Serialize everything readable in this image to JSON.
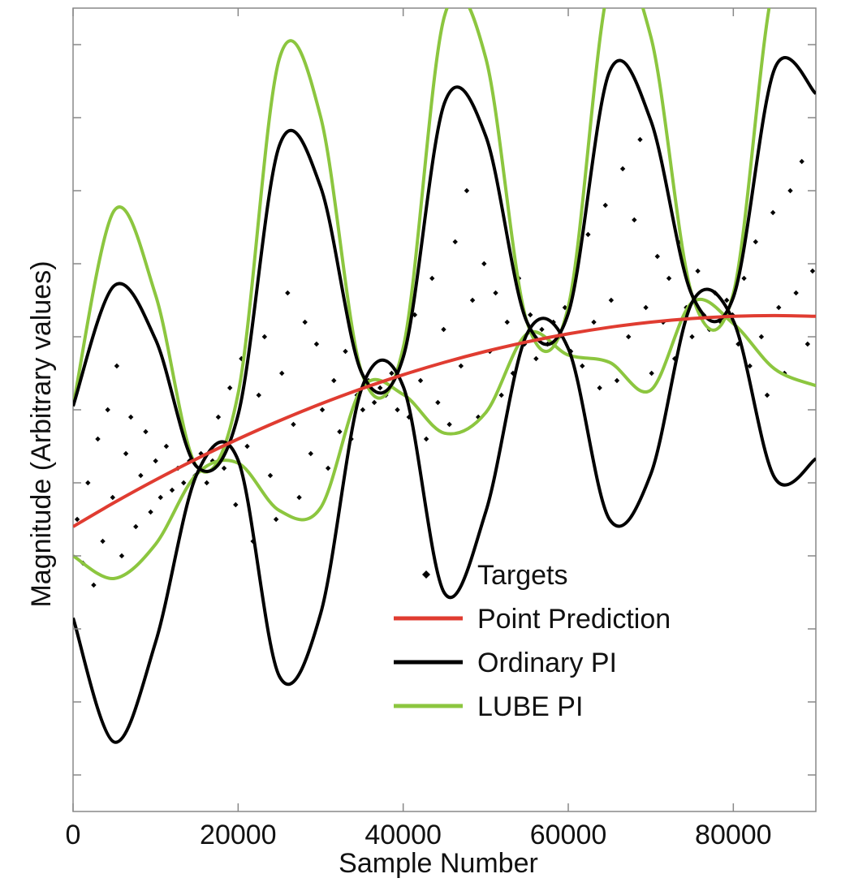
{
  "chart_data": {
    "type": "line",
    "xlabel": "Sample Number",
    "ylabel": "Magnitude  (Arbitrary values)",
    "xlim": [
      0,
      90000
    ],
    "ylim": [
      -4.5,
      6.5
    ],
    "x_ticks": [
      0,
      20000,
      40000,
      60000,
      80000
    ],
    "x_tick_labels": [
      "0",
      "20000",
      "40000",
      "60000",
      "80000"
    ],
    "y_ticks": [
      -4,
      -3,
      -2,
      -1,
      0,
      1,
      2,
      3,
      4,
      5,
      6
    ],
    "y_tick_labels_shown": false,
    "grid": false,
    "legend_position": "lower-center",
    "x": [
      0,
      5000,
      10000,
      15000,
      20000,
      25000,
      30000,
      35000,
      40000,
      45000,
      50000,
      55000,
      60000,
      65000,
      70000,
      75000,
      80000,
      85000,
      90000
    ],
    "series": [
      {
        "name": "Targets",
        "kind": "scatter",
        "color": "#000000",
        "points": [
          [
            500,
            -0.5
          ],
          [
            1200,
            -1.1
          ],
          [
            1800,
            0.0
          ],
          [
            2500,
            -1.4
          ],
          [
            3000,
            0.6
          ],
          [
            3600,
            -0.8
          ],
          [
            4200,
            1.0
          ],
          [
            4800,
            -0.2
          ],
          [
            5300,
            1.6
          ],
          [
            5900,
            -1.0
          ],
          [
            6400,
            0.4
          ],
          [
            7000,
            0.9
          ],
          [
            7600,
            -0.6
          ],
          [
            8200,
            0.1
          ],
          [
            8800,
            0.7
          ],
          [
            9400,
            -0.4
          ],
          [
            10000,
            0.3
          ],
          [
            10600,
            -0.2
          ],
          [
            11300,
            0.5
          ],
          [
            12000,
            -0.1
          ],
          [
            12700,
            0.2
          ],
          [
            13400,
            0.0
          ],
          [
            14100,
            0.3
          ],
          [
            14800,
            0.1
          ],
          [
            15500,
            0.4
          ],
          [
            16200,
            0.0
          ],
          [
            16900,
            0.3
          ],
          [
            17600,
            0.9
          ],
          [
            18300,
            0.2
          ],
          [
            19000,
            1.3
          ],
          [
            19700,
            -0.3
          ],
          [
            20400,
            1.7
          ],
          [
            21100,
            0.5
          ],
          [
            21800,
            -0.8
          ],
          [
            22500,
            1.2
          ],
          [
            23200,
            2.0
          ],
          [
            23900,
            0.1
          ],
          [
            24600,
            -0.5
          ],
          [
            25300,
            1.5
          ],
          [
            26000,
            2.6
          ],
          [
            26700,
            0.8
          ],
          [
            27400,
            -0.2
          ],
          [
            28100,
            2.2
          ],
          [
            28800,
            0.4
          ],
          [
            29500,
            1.9
          ],
          [
            30200,
            1.0
          ],
          [
            30900,
            0.2
          ],
          [
            31600,
            1.4
          ],
          [
            32300,
            0.7
          ],
          [
            33000,
            1.8
          ],
          [
            33700,
            0.6
          ],
          [
            34400,
            1.2
          ],
          [
            35100,
            1.0
          ],
          [
            35800,
            1.4
          ],
          [
            36500,
            1.1
          ],
          [
            37200,
            1.3
          ],
          [
            37900,
            1.2
          ],
          [
            38600,
            1.5
          ],
          [
            39300,
            1.0
          ],
          [
            40000,
            1.8
          ],
          [
            40700,
            0.9
          ],
          [
            41400,
            2.3
          ],
          [
            42100,
            1.4
          ],
          [
            42800,
            0.6
          ],
          [
            43500,
            2.8
          ],
          [
            44200,
            1.1
          ],
          [
            44900,
            2.1
          ],
          [
            45600,
            0.8
          ],
          [
            46300,
            3.3
          ],
          [
            47000,
            1.6
          ],
          [
            47700,
            4.0
          ],
          [
            48400,
            2.5
          ],
          [
            49100,
            0.9
          ],
          [
            49800,
            3.0
          ],
          [
            50500,
            1.8
          ],
          [
            51200,
            2.6
          ],
          [
            51900,
            1.2
          ],
          [
            52600,
            2.2
          ],
          [
            53300,
            1.5
          ],
          [
            54000,
            2.8
          ],
          [
            54700,
            1.9
          ],
          [
            55400,
            2.3
          ],
          [
            56100,
            1.7
          ],
          [
            56800,
            2.1
          ],
          [
            57500,
            1.9
          ],
          [
            58200,
            2.2
          ],
          [
            58900,
            2.0
          ],
          [
            59600,
            2.4
          ],
          [
            60300,
            1.8
          ],
          [
            61000,
            2.9
          ],
          [
            61700,
            1.6
          ],
          [
            62400,
            3.4
          ],
          [
            63100,
            2.2
          ],
          [
            63800,
            1.3
          ],
          [
            64500,
            3.8
          ],
          [
            65200,
            2.5
          ],
          [
            65900,
            1.4
          ],
          [
            66600,
            4.3
          ],
          [
            67300,
            2.0
          ],
          [
            68000,
            3.6
          ],
          [
            68700,
            4.7
          ],
          [
            69400,
            2.4
          ],
          [
            70100,
            1.5
          ],
          [
            70800,
            3.1
          ],
          [
            71500,
            2.2
          ],
          [
            72200,
            2.8
          ],
          [
            72900,
            1.7
          ],
          [
            73600,
            3.3
          ],
          [
            74300,
            2.4
          ],
          [
            75000,
            2.0
          ],
          [
            75700,
            2.9
          ],
          [
            76400,
            2.3
          ],
          [
            77100,
            2.1
          ],
          [
            77800,
            2.6
          ],
          [
            78500,
            2.2
          ],
          [
            79200,
            2.5
          ],
          [
            79900,
            2.3
          ],
          [
            80600,
            1.9
          ],
          [
            81300,
            2.8
          ],
          [
            82000,
            1.6
          ],
          [
            82700,
            3.3
          ],
          [
            83400,
            2.0
          ],
          [
            84100,
            1.2
          ],
          [
            84800,
            3.7
          ],
          [
            85500,
            2.4
          ],
          [
            86200,
            1.5
          ],
          [
            86900,
            4.0
          ],
          [
            87600,
            2.6
          ],
          [
            88300,
            4.4
          ],
          [
            89000,
            1.9
          ],
          [
            89600,
            2.9
          ]
        ]
      },
      {
        "name": "Point Prediction",
        "kind": "line",
        "color": "#e03c31",
        "values": [
          -0.6,
          -0.27,
          0.04,
          0.33,
          0.6,
          0.85,
          1.08,
          1.29,
          1.48,
          1.65,
          1.8,
          1.93,
          2.04,
          2.13,
          2.2,
          2.25,
          2.28,
          2.29,
          2.28
        ]
      },
      {
        "name": "Ordinary PI",
        "kind": "line",
        "color": "#000000",
        "upper": [
          1.05,
          2.7,
          1.96,
          0.22,
          0.93,
          4.62,
          4.05,
          1.5,
          1.72,
          5.2,
          4.75,
          2.2,
          2.32,
          5.63,
          4.96,
          2.57,
          2.54,
          5.67,
          5.33
        ],
        "lower": [
          -1.85,
          -3.55,
          -2.18,
          0.12,
          0.31,
          -2.65,
          -1.79,
          1.3,
          1.32,
          -1.51,
          -0.4,
          2.04,
          1.84,
          -0.5,
          0.12,
          2.47,
          2.22,
          0.07,
          0.33
        ]
      },
      {
        "name": "LUBE PI",
        "kind": "line",
        "color": "#8cc63f",
        "upper": [
          1.05,
          3.73,
          2.57,
          0.22,
          1.22,
          5.81,
          5.01,
          1.5,
          1.85,
          6.39,
          5.82,
          2.2,
          2.41,
          6.84,
          6.11,
          2.57,
          2.59,
          6.88,
          6.55
        ],
        "lower": [
          -1.0,
          -1.31,
          -0.84,
          0.12,
          0.27,
          -0.38,
          -0.34,
          1.3,
          1.21,
          0.68,
          0.96,
          2.04,
          1.75,
          1.65,
          1.27,
          2.47,
          2.18,
          1.56,
          1.33
        ]
      }
    ]
  }
}
